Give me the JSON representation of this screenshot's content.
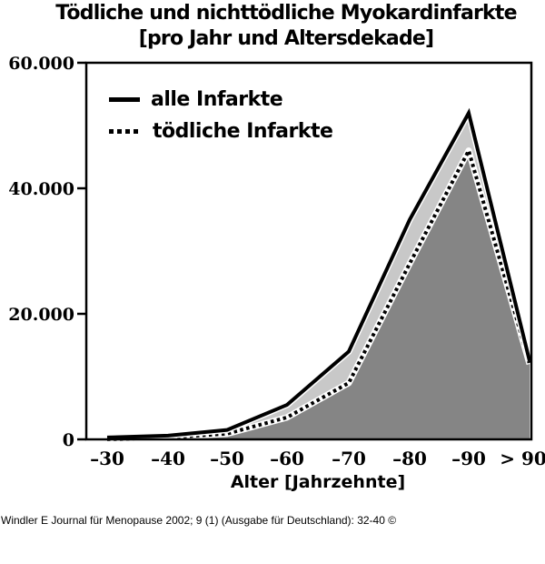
{
  "chart_data": {
    "type": "area",
    "title": "Tödliche und nichttödliche Myokardinfarkte",
    "subtitle": "[pro Jahr und Altersdekade]",
    "xlabel": "Alter [Jahrzehnte]",
    "ylabel": "",
    "categories": [
      "–30",
      "–40",
      "–50",
      "–60",
      "–70",
      "–80",
      "–90",
      "> 90"
    ],
    "series": [
      {
        "name": "alle Infarkte",
        "style": "solid",
        "fill": "#c8c8c8",
        "values": [
          300,
          600,
          1500,
          5500,
          14000,
          35000,
          52000,
          12500
        ]
      },
      {
        "name": "tödliche Infarkte",
        "style": "dotted",
        "fill": "#858585",
        "values": [
          0,
          300,
          900,
          3500,
          9000,
          28000,
          46000,
          12000
        ]
      }
    ],
    "yticks": [
      0,
      20000,
      40000,
      60000
    ],
    "ytick_labels": [
      "0",
      "20.000",
      "40.000",
      "60.000"
    ],
    "ylim": [
      0,
      60000
    ],
    "grid": false,
    "legend_position": "upper-left-inside"
  },
  "chart": {
    "title_line1": "Tödliche und nichttödliche Myokardinfarkte",
    "title_line2": "[pro Jahr und Altersdekade]",
    "xlabel": "Alter [Jahrzehnte]",
    "legend": {
      "item1": "alle Infarkte",
      "item2": "tödliche Infarkte"
    }
  },
  "citation": "Windler E Journal für Menopause 2002; 9 (1) (Ausgabe für Deutschland): 32-40 ©"
}
